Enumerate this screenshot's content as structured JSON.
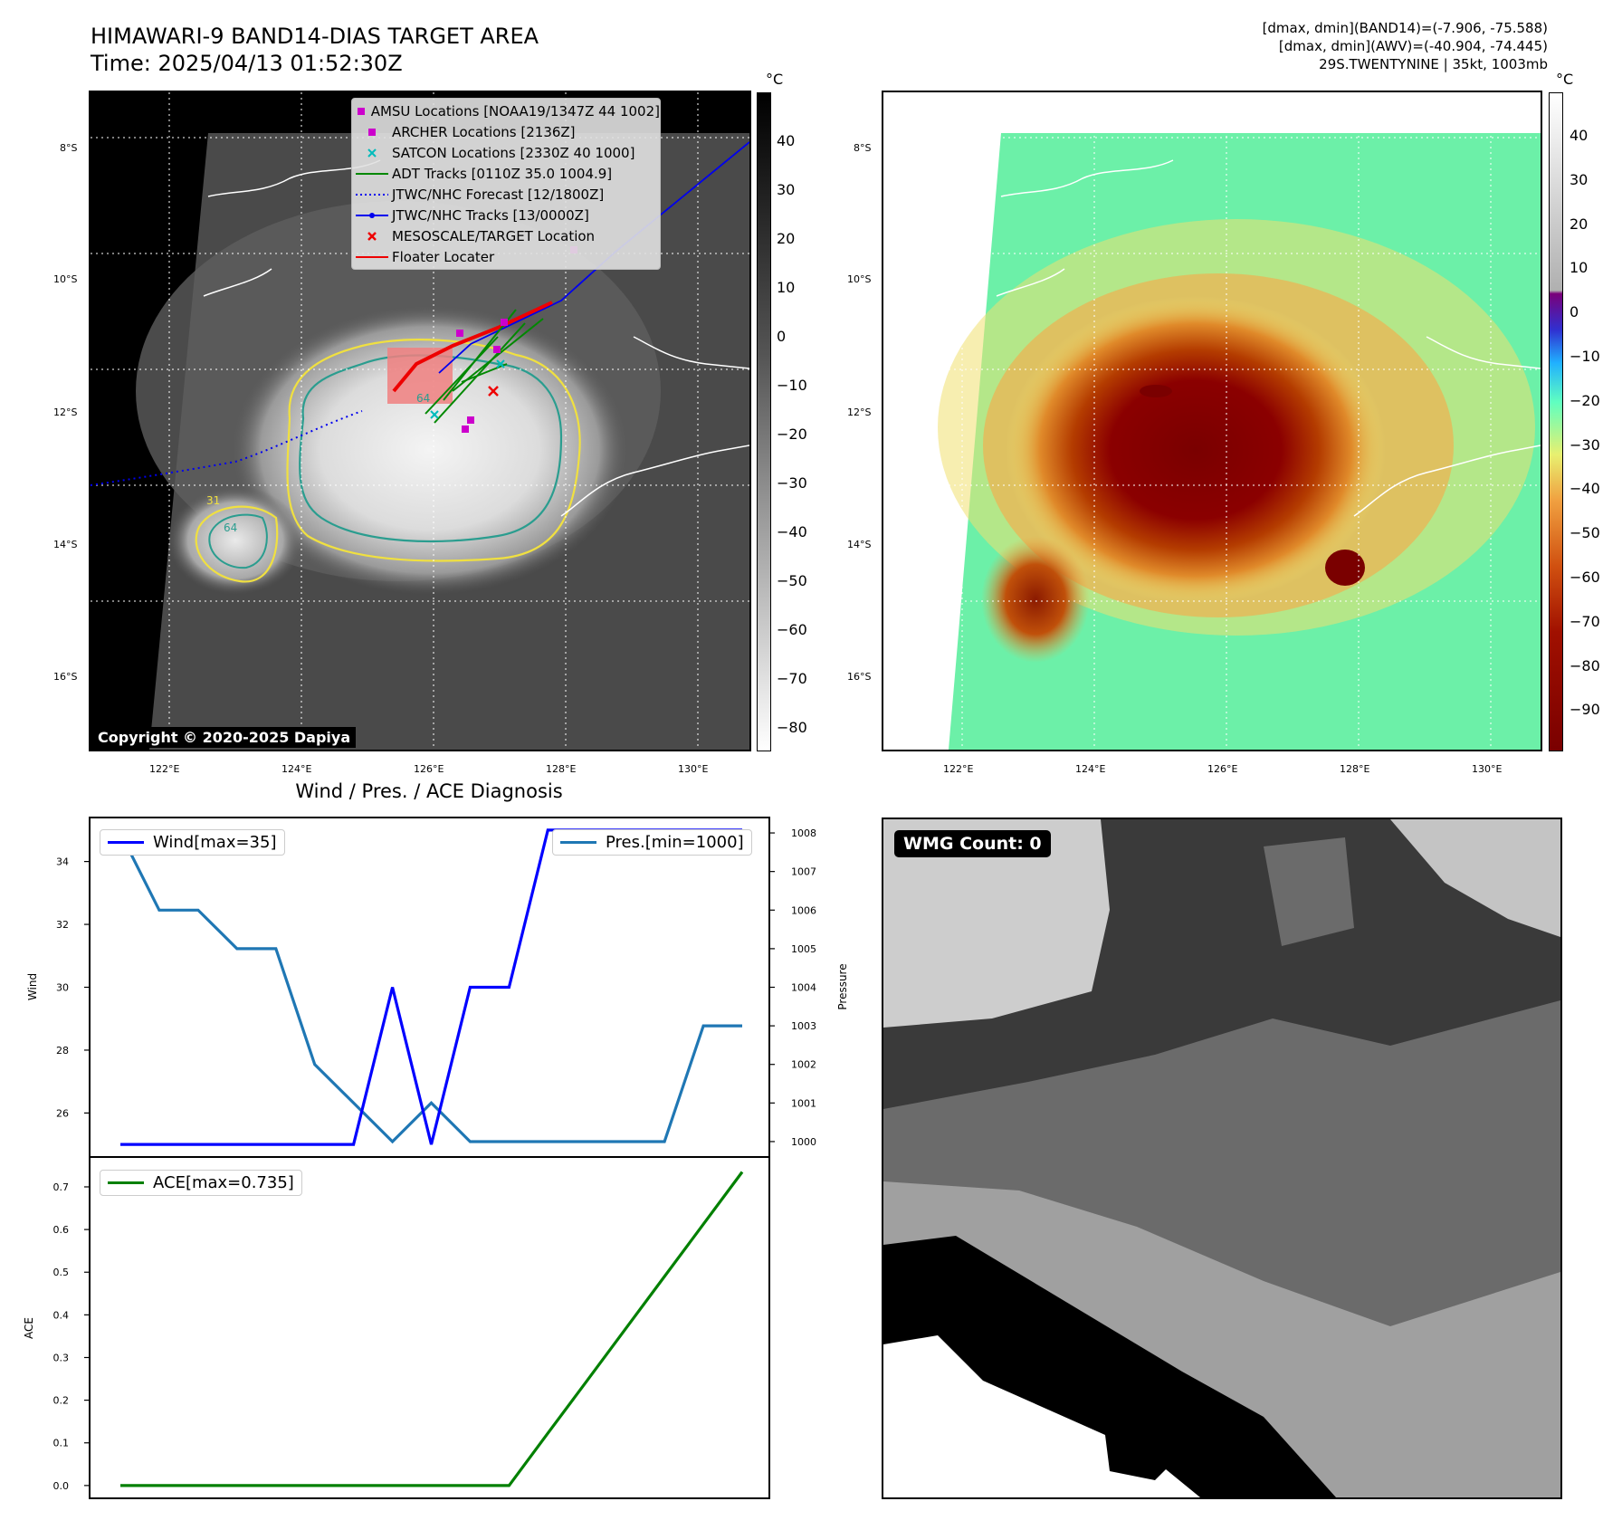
{
  "header": {
    "title_line1": "HIMAWARI-9 BAND14-DIAS TARGET AREA",
    "title_line2": "Time: 2025/04/13 01:52:30Z",
    "info_line1": "[dmax, dmin](BAND14)=(-7.906, -75.588)",
    "info_line2": "[dmax, dmin](AWV)=(-40.904, -74.445)",
    "info_line3": "29S.TWENTYNINE | 35kt, 1003mb"
  },
  "map_axes": {
    "lon_ticks": [
      "122°E",
      "124°E",
      "126°E",
      "128°E",
      "130°E"
    ],
    "lat_ticks": [
      "8°S",
      "10°S",
      "12°S",
      "14°S",
      "16°S"
    ]
  },
  "left_map": {
    "copyright": "Copyright © 2020-2025 Dapiya",
    "contour_labels": [
      "64",
      "64",
      "31"
    ],
    "legend": [
      {
        "label": "AMSU Locations [NOAA19/1347Z 44 1002]",
        "symbol": "square",
        "color": "#cc00cc"
      },
      {
        "label": "ARCHER Locations [2136Z]",
        "symbol": "square",
        "color": "#cc00cc"
      },
      {
        "label": "SATCON Locations [2330Z 40 1000]",
        "symbol": "x",
        "color": "#00bbbb"
      },
      {
        "label": "ADT Tracks [0110Z 35.0 1004.9]",
        "symbol": "line",
        "color": "#008800"
      },
      {
        "label": "JTWC/NHC Forecast [12/1800Z]",
        "symbol": "dotted",
        "color": "#0000ee"
      },
      {
        "label": "JTWC/NHC Tracks [13/0000Z]",
        "symbol": "line-dot",
        "color": "#0000ee"
      },
      {
        "label": "MESOSCALE/TARGET Location",
        "symbol": "x",
        "color": "#ee0000"
      },
      {
        "label": "Floater Locater",
        "symbol": "line",
        "color": "#ee0000"
      }
    ],
    "colorbar": {
      "unit": "°C",
      "ticks": [
        "40",
        "30",
        "20",
        "10",
        "0",
        "−10",
        "−20",
        "−30",
        "−40",
        "−50",
        "−60",
        "−70",
        "−80"
      ]
    }
  },
  "right_map": {
    "colorbar": {
      "unit": "°C",
      "ticks": [
        "40",
        "30",
        "20",
        "10",
        "0",
        "−10",
        "−20",
        "−30",
        "−40",
        "−50",
        "−60",
        "−70",
        "−80",
        "−90"
      ]
    }
  },
  "wmg": {
    "label": "WMG Count: 0"
  },
  "chart_data": [
    {
      "type": "line",
      "title": "Wind / Pres. / ACE Diagnosis",
      "ylabel": "Wind",
      "ylim": [
        24.6,
        35.4
      ],
      "yticks": [
        "26",
        "28",
        "30",
        "32",
        "34"
      ],
      "series": [
        {
          "name": "Wind[max=35]",
          "color": "#0000ff",
          "values": [
            25,
            25,
            25,
            25,
            25,
            25,
            25,
            30,
            25,
            30,
            30,
            35,
            35,
            35,
            35,
            35,
            35
          ]
        }
      ]
    },
    {
      "type": "line",
      "ylabel": "Pressure",
      "ylim": [
        999.6,
        1008.4
      ],
      "yticks": [
        "1000",
        "1001",
        "1002",
        "1003",
        "1004",
        "1005",
        "1006",
        "1007",
        "1008"
      ],
      "series": [
        {
          "name": "Pres.[min=1000]",
          "color": "#1f77b4",
          "values": [
            1008,
            1006,
            1006,
            1005,
            1005,
            1002,
            1001,
            1000,
            1001,
            1000,
            1000,
            1000,
            1000,
            1000,
            1000,
            1003,
            1003
          ]
        }
      ]
    },
    {
      "type": "line",
      "ylabel": "ACE",
      "ylim": [
        -0.03,
        0.77
      ],
      "yticks": [
        "0.0",
        "0.1",
        "0.2",
        "0.3",
        "0.4",
        "0.5",
        "0.6",
        "0.7"
      ],
      "series": [
        {
          "name": "ACE[max=0.735]",
          "color": "#008000",
          "values": [
            0,
            0,
            0,
            0,
            0,
            0,
            0,
            0,
            0,
            0,
            0,
            0.1225,
            0.245,
            0.3675,
            0.49,
            0.6125,
            0.735
          ]
        }
      ]
    }
  ]
}
